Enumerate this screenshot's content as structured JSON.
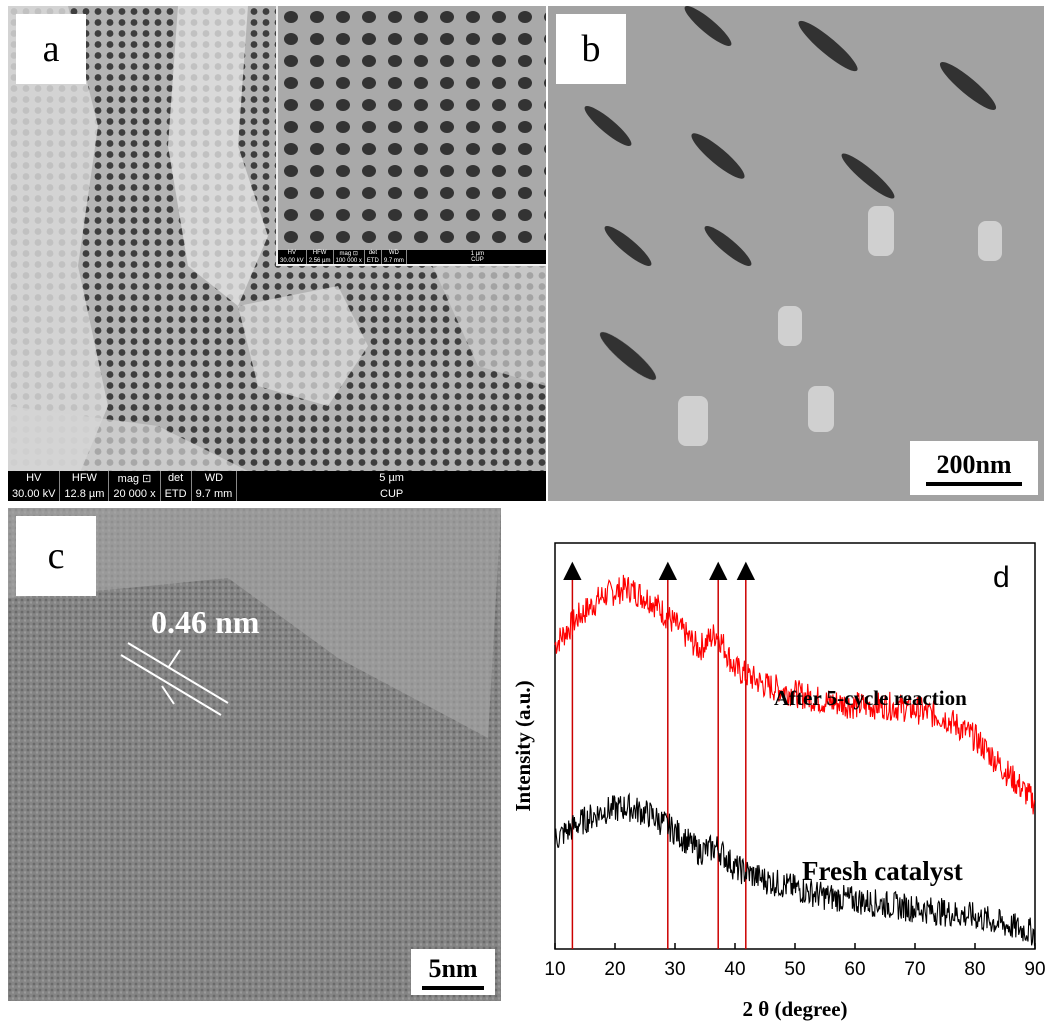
{
  "panel_a": {
    "letter": "a",
    "sem_bar": {
      "hv_label": "HV",
      "hv_value": "30.00 kV",
      "hfw_label": "HFW",
      "hfw_value": "12.8 µm",
      "mag_label": "mag ⊡",
      "mag_value": "20 000 x",
      "det_label": "det",
      "det_value": "ETD",
      "wd_label": "WD",
      "wd_value": "9.7 mm",
      "scale_label": "5 µm",
      "lab": "CUP"
    },
    "inset_bar": {
      "hv_label": "HV",
      "hv_value": "30.00 kV",
      "hfw_label": "HFW",
      "hfw_value": "2.56 µm",
      "mag_label": "mag ⊡",
      "mag_value": "100 000 x",
      "det_label": "det",
      "det_value": "ETD",
      "wd_label": "WD",
      "wd_value": "9.7 mm",
      "scale_label": "1 µm",
      "lab": "CUP"
    }
  },
  "panel_b": {
    "letter": "b",
    "scale_bar": "200nm"
  },
  "panel_c": {
    "letter": "c",
    "scale_bar": "5nm",
    "lattice_spacing": "0.46 nm"
  },
  "panel_d": {
    "letter": "d"
  },
  "chart_data": {
    "type": "line",
    "xlabel": "2 θ (degree)",
    "ylabel": "Intensity (a.u.)",
    "xlim": [
      10,
      90
    ],
    "x_ticks": [
      10,
      20,
      30,
      40,
      50,
      60,
      70,
      80,
      90
    ],
    "y_ticks": [],
    "grid": false,
    "legend": "none",
    "series": [
      {
        "name": "After 5-cycle reaction",
        "color": "#ff0000",
        "x": [
          10,
          14,
          18,
          22,
          26,
          30,
          34,
          37,
          40,
          45,
          50,
          55,
          60,
          65,
          70,
          75,
          80,
          85,
          90
        ],
        "values": [
          75,
          82,
          87,
          89,
          86,
          80,
          74,
          78,
          69,
          65,
          63,
          61,
          60,
          60,
          59,
          57,
          52,
          44,
          36
        ]
      },
      {
        "name": "Fresh catalyst",
        "color": "#000000",
        "x": [
          10,
          14,
          18,
          22,
          26,
          30,
          34,
          37,
          40,
          45,
          50,
          55,
          60,
          65,
          70,
          75,
          80,
          85,
          90
        ],
        "values": [
          27,
          31,
          34,
          35,
          33,
          29,
          24,
          25,
          20,
          17,
          15,
          13,
          12,
          11,
          10,
          9,
          8,
          6,
          4
        ]
      }
    ],
    "peak_markers": {
      "positions": [
        12.9,
        28.8,
        37.2,
        41.8
      ],
      "marker": "▲",
      "line_color": "#cc0000"
    }
  }
}
